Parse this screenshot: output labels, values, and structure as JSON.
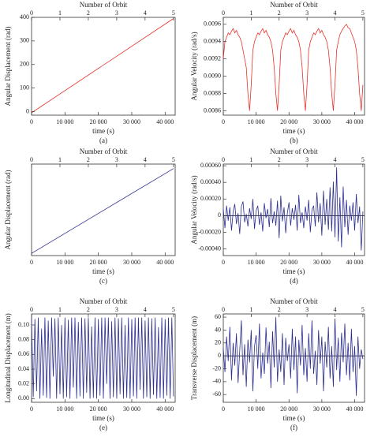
{
  "chart_data": [
    {
      "type": "line",
      "caption": "(a)",
      "top_label": "Number of Orbit",
      "xlabel": "time (s)",
      "ylabel": "Angular Displacement (rad)",
      "color": "#e8302a",
      "x": [
        0,
        42500
      ],
      "values": [
        -5,
        395
      ],
      "xlim": [
        0,
        43000
      ],
      "xticks": [
        0,
        {
          "value": 10000,
          "label": "10 000"
        },
        {
          "value": 20000,
          "label": "20 000"
        },
        {
          "value": 30000,
          "label": "30 000"
        },
        {
          "value": 40000,
          "label": "40 000"
        }
      ],
      "x2lim": [
        0,
        5.06
      ],
      "x2ticks": [
        0,
        1,
        2,
        3,
        4,
        5
      ],
      "ylim": [
        -15,
        400
      ],
      "yticks": [
        0,
        100,
        200,
        300,
        400
      ]
    },
    {
      "type": "line",
      "caption": "(b)",
      "top_label": "Number of Orbit",
      "xlabel": "time (s)",
      "ylabel": "Angular Velocity (rad/s)",
      "color": "#e8302a",
      "x": [
        0,
        500,
        1000,
        1500,
        2000,
        2500,
        3000,
        3500,
        4000,
        4500,
        5000,
        5500,
        6000,
        6500,
        7000,
        7500,
        8000,
        8500,
        9000,
        9500,
        10000,
        10500,
        11000,
        11500,
        12000,
        12500,
        13000,
        13500,
        14000,
        14500,
        15000,
        15500,
        16000,
        16500,
        17000,
        17500,
        18000,
        18500,
        19000,
        19500,
        20000,
        20500,
        21000,
        21500,
        22000,
        22500,
        23000,
        23500,
        24000,
        24500,
        25000,
        25500,
        26000,
        26500,
        27000,
        27500,
        28000,
        28500,
        29000,
        29500,
        30000,
        30500,
        31000,
        31500,
        32000,
        32500,
        33000,
        33500,
        34000,
        34500,
        35000,
        35500,
        36000,
        36500,
        37000,
        37500,
        38000,
        38500,
        39000,
        39500,
        40000,
        40500,
        41000,
        41500,
        42000,
        42500
      ],
      "values": [
        0.0092,
        0.0094,
        0.00945,
        0.0095,
        0.00948,
        0.00952,
        0.00955,
        0.0095,
        0.00953,
        0.00948,
        0.00945,
        0.0094,
        0.0093,
        0.0092,
        0.0091,
        0.0088,
        0.0086,
        0.0089,
        0.0093,
        0.0094,
        0.00945,
        0.0095,
        0.00948,
        0.00952,
        0.00955,
        0.0095,
        0.00953,
        0.00948,
        0.00945,
        0.0094,
        0.0093,
        0.0091,
        0.0088,
        0.0086,
        0.0089,
        0.0093,
        0.0094,
        0.00945,
        0.0095,
        0.00948,
        0.00952,
        0.00955,
        0.0095,
        0.00953,
        0.00948,
        0.00945,
        0.0094,
        0.0093,
        0.0091,
        0.0088,
        0.0086,
        0.0089,
        0.0093,
        0.0094,
        0.00945,
        0.0095,
        0.00948,
        0.00952,
        0.00955,
        0.0095,
        0.00953,
        0.00948,
        0.00945,
        0.0094,
        0.0093,
        0.0091,
        0.0088,
        0.0086,
        0.0089,
        0.0093,
        0.0094,
        0.00948,
        0.00952,
        0.00955,
        0.00958,
        0.0096,
        0.00956,
        0.00955,
        0.0095,
        0.00945,
        0.0094,
        0.0093,
        0.0091,
        0.0088,
        0.0086,
        0.0089
      ],
      "xlim": [
        0,
        43000
      ],
      "xticks": [
        0,
        {
          "value": 10000,
          "label": "10 000"
        },
        {
          "value": 20000,
          "label": "20 000"
        },
        {
          "value": 30000,
          "label": "30 000"
        },
        {
          "value": 40000,
          "label": "40 000"
        }
      ],
      "x2lim": [
        0,
        5.06
      ],
      "x2ticks": [
        0,
        1,
        2,
        3,
        4,
        5
      ],
      "ylim": [
        0.00855,
        0.00968
      ],
      "yticks": [
        0.0086,
        0.0088,
        {
          "value": 0.009,
          "label": "0.0090"
        },
        0.0092,
        0.0094,
        0.0096
      ]
    },
    {
      "type": "line",
      "caption": "(c)",
      "top_label": "Number of Orbit",
      "xlabel": "time (s)",
      "ylabel": "Angular Displacement (rad)",
      "color": "#2b2e8f",
      "x": [
        0,
        42500
      ],
      "values": [
        0,
        0.19
      ],
      "xlim": [
        0,
        43000
      ],
      "xticks": [
        0,
        {
          "value": 10000,
          "label": "10 000"
        },
        {
          "value": 20000,
          "label": "20 000"
        },
        {
          "value": 30000,
          "label": "30 000"
        },
        {
          "value": 40000,
          "label": "40 000"
        }
      ],
      "x2lim": [
        0,
        5.06
      ],
      "x2ticks": [
        0,
        1,
        2,
        3,
        4,
        5
      ],
      "ylim": [
        -0.005,
        0.2
      ]
    },
    {
      "type": "line",
      "caption": "(d)",
      "top_label": "Number of Orbit",
      "xlabel": "time (s)",
      "ylabel": "Angular Velocity (rad/s)",
      "color": "#2b2e8f",
      "zero_line": true,
      "x": [
        0,
        500,
        1000,
        1500,
        2000,
        2500,
        3000,
        3500,
        4000,
        4500,
        5000,
        5500,
        6000,
        6500,
        7000,
        7500,
        8000,
        8500,
        9000,
        9500,
        10000,
        10500,
        11000,
        11500,
        12000,
        12500,
        13000,
        13500,
        14000,
        14500,
        15000,
        15500,
        16000,
        16500,
        17000,
        17500,
        18000,
        18500,
        19000,
        19500,
        20000,
        20500,
        21000,
        21500,
        22000,
        22500,
        23000,
        23500,
        24000,
        24500,
        25000,
        25500,
        26000,
        26500,
        27000,
        27500,
        28000,
        28500,
        29000,
        29500,
        30000,
        30500,
        31000,
        31500,
        32000,
        32500,
        33000,
        33500,
        34000,
        34500,
        35000,
        35500,
        36000,
        36500,
        37000,
        37500,
        38000,
        38500,
        39000,
        39500,
        40000,
        40500,
        41000,
        41500,
        42000,
        42500
      ],
      "values": [
        8e-05,
        -0.00015,
        0.00012,
        -6e-05,
        0.0001,
        -0.00018,
        5e-05,
        0.00014,
        -0.0001,
        3e-05,
        -0.00022,
        0.00011,
        0.00017,
        -8e-05,
        2e-05,
        -0.00013,
        9e-05,
        -4e-05,
        0.0002,
        -0.00016,
        6e-05,
        0.00012,
        -0.00011,
        4e-05,
        -0.00019,
        0.00015,
        -3e-05,
        8e-05,
        -0.00014,
        0.00021,
        -9e-05,
        5e-05,
        -0.00012,
        0.00018,
        -0.00027,
        0.00024,
        -7e-05,
        0.0001,
        -0.00021,
        3e-05,
        0.00016,
        -0.00012,
        9e-05,
        -5e-05,
        0.00013,
        -0.00018,
        0.00025,
        -9e-05,
        4e-05,
        -0.00015,
        0.00011,
        -6e-05,
        0.00019,
        -0.0002,
        7e-05,
        0.00012,
        -0.00013,
        0.00028,
        -8e-05,
        0.00015,
        -0.00024,
        0.0003,
        -0.00011,
        0.0002,
        -0.00017,
        0.00034,
        -0.00019,
        0.00041,
        -0.00026,
        0.00058,
        -0.00031,
        0.00022,
        -0.00038,
        0.00035,
        -0.00014,
        0.00019,
        -0.00023,
        0.00012,
        -6e-05,
        0.00016,
        -0.00018,
        0.00026,
        -9e-05,
        0.00011,
        -0.00042,
        5e-05
      ],
      "xlim": [
        0,
        43000
      ],
      "xticks": [
        0,
        {
          "value": 10000,
          "label": "10 000"
        },
        {
          "value": 20000,
          "label": "20 000"
        },
        {
          "value": 30000,
          "label": "30 000"
        },
        {
          "value": 40000,
          "label": "40 000"
        }
      ],
      "x2lim": [
        0,
        5.06
      ],
      "x2ticks": [
        0,
        1,
        2,
        3,
        4,
        5
      ],
      "ylim": [
        -0.00048,
        0.00062
      ],
      "yticks": [
        {
          "value": -0.0004,
          "label": "-0.00040"
        },
        {
          "value": -0.0002,
          "label": "-0.00020"
        },
        0,
        {
          "value": 0.0002,
          "label": "0.00020"
        },
        {
          "value": 0.0004,
          "label": "0.00040"
        },
        {
          "value": 0.0006,
          "label": "0.00060"
        }
      ]
    },
    {
      "type": "line",
      "caption": "(e)",
      "top_label": "Number of Orbit",
      "xlabel": "time (s)",
      "ylabel": "Longitudinal Displacement (m)",
      "color": "#2b2e8f",
      "x": [
        0,
        500,
        1000,
        1500,
        2000,
        2500,
        3000,
        3500,
        4000,
        4500,
        5000,
        5500,
        6000,
        6500,
        7000,
        7500,
        8000,
        8500,
        9000,
        9500,
        10000,
        10500,
        11000,
        11500,
        12000,
        12500,
        13000,
        13500,
        14000,
        14500,
        15000,
        15500,
        16000,
        16500,
        17000,
        17500,
        18000,
        18500,
        19000,
        19500,
        20000,
        20500,
        21000,
        21500,
        22000,
        22500,
        23000,
        23500,
        24000,
        24500,
        25000,
        25500,
        26000,
        26500,
        27000,
        27500,
        28000,
        28500,
        29000,
        29500,
        30000,
        30500,
        31000,
        31500,
        32000,
        32500,
        33000,
        33500,
        34000,
        34500,
        35000,
        35500,
        36000,
        36500,
        37000,
        37500,
        38000,
        38500,
        39000,
        39500,
        40000,
        40500,
        41000,
        41500,
        42000,
        42500
      ],
      "values": [
        0.11,
        0.002,
        0.108,
        0.01,
        0.11,
        0.0,
        0.095,
        0.004,
        0.11,
        0.001,
        0.106,
        0.0,
        0.11,
        0.03,
        0.109,
        0.0,
        0.11,
        0.006,
        0.1,
        0.0,
        0.11,
        0.002,
        0.107,
        0.0,
        0.11,
        0.015,
        0.11,
        0.0,
        0.104,
        0.003,
        0.11,
        0.0,
        0.109,
        0.008,
        0.11,
        0.0,
        0.098,
        0.001,
        0.11,
        0.0,
        0.108,
        0.004,
        0.11,
        0.0,
        0.11,
        0.02,
        0.11,
        0.0,
        0.105,
        0.002,
        0.11,
        0.0,
        0.109,
        0.006,
        0.11,
        0.0,
        0.1,
        0.001,
        0.11,
        0.0,
        0.108,
        0.003,
        0.11,
        0.0,
        0.11,
        0.012,
        0.11,
        0.0,
        0.106,
        0.002,
        0.11,
        0.0,
        0.109,
        0.005,
        0.11,
        0.0,
        0.097,
        0.001,
        0.11,
        0.0,
        0.108,
        0.004,
        0.11,
        0.0,
        0.11,
        0.003
      ],
      "xlim": [
        0,
        43000
      ],
      "xticks": [
        0,
        {
          "value": 10000,
          "label": "10 000"
        },
        {
          "value": 20000,
          "label": "20 000"
        },
        {
          "value": 30000,
          "label": "30 000"
        },
        {
          "value": 40000,
          "label": "40 000"
        }
      ],
      "x2lim": [
        0,
        5.06
      ],
      "x2ticks": [
        0,
        1,
        2,
        3,
        4,
        5
      ],
      "ylim": [
        -0.005,
        0.115
      ],
      "yticks": [
        {
          "value": 0,
          "label": "0.00"
        },
        {
          "value": 0.02,
          "label": "0.02"
        },
        {
          "value": 0.04,
          "label": "0.04"
        },
        {
          "value": 0.06,
          "label": "0.06"
        },
        {
          "value": 0.08,
          "label": "0.08"
        },
        {
          "value": 0.1,
          "label": "0.10"
        }
      ]
    },
    {
      "type": "line",
      "caption": "(f)",
      "top_label": "Number of Orbit",
      "xlabel": "time (s)",
      "ylabel": "Transverse Displacement (m)",
      "color": "#2b2e8f",
      "zero_line": true,
      "x": [
        0,
        500,
        1000,
        1500,
        2000,
        2500,
        3000,
        3500,
        4000,
        4500,
        5000,
        5500,
        6000,
        6500,
        7000,
        7500,
        8000,
        8500,
        9000,
        9500,
        10000,
        10500,
        11000,
        11500,
        12000,
        12500,
        13000,
        13500,
        14000,
        14500,
        15000,
        15500,
        16000,
        16500,
        17000,
        17500,
        18000,
        18500,
        19000,
        19500,
        20000,
        20500,
        21000,
        21500,
        22000,
        22500,
        23000,
        23500,
        24000,
        24500,
        25000,
        25500,
        26000,
        26500,
        27000,
        27500,
        28000,
        28500,
        29000,
        29500,
        30000,
        30500,
        31000,
        31500,
        32000,
        32500,
        33000,
        33500,
        34000,
        34500,
        35000,
        35500,
        36000,
        36500,
        37000,
        37500,
        38000,
        38500,
        39000,
        39500,
        40000,
        40500,
        41000,
        41500,
        42000,
        42500
      ],
      "values": [
        12,
        -25,
        30,
        -8,
        45,
        -38,
        20,
        -15,
        35,
        -42,
        8,
        55,
        -30,
        18,
        -48,
        25,
        -10,
        40,
        -55,
        15,
        32,
        -20,
        50,
        -35,
        5,
        -28,
        44,
        -12,
        22,
        -50,
        38,
        -18,
        60,
        -40,
        10,
        -25,
        35,
        -45,
        28,
        -8,
        18,
        -35,
        42,
        -22,
        30,
        -58,
        25,
        -15,
        48,
        -30,
        12,
        -40,
        35,
        -20,
        55,
        -28,
        8,
        -45,
        40,
        -12,
        30,
        -55,
        22,
        -18,
        45,
        -35,
        15,
        -48,
        58,
        -22,
        28,
        -40,
        36,
        -10,
        50,
        -30,
        20,
        -38,
        42,
        -25,
        15,
        -62,
        30,
        -20,
        10,
        -5
      ],
      "xlim": [
        0,
        43000
      ],
      "xticks": [
        0,
        {
          "value": 10000,
          "label": "10 000"
        },
        {
          "value": 20000,
          "label": "20 000"
        },
        {
          "value": 30000,
          "label": "30 000"
        },
        {
          "value": 40000,
          "label": "40 000"
        }
      ],
      "x2lim": [
        0,
        5.06
      ],
      "x2ticks": [
        0,
        1,
        2,
        3,
        4,
        5
      ],
      "ylim": [
        -72,
        65
      ],
      "yticks": [
        -60,
        -40,
        -20,
        0,
        20,
        40,
        60
      ]
    }
  ]
}
